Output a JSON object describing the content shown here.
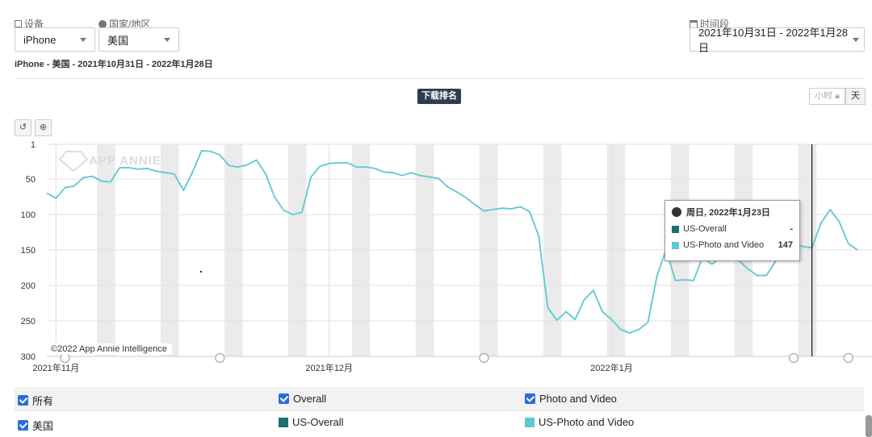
{
  "filters": {
    "device_label": "设备",
    "device_value": "iPhone",
    "country_label": "国家/地区",
    "country_value": "美国",
    "period_label": "时间段",
    "period_value": "2021年10月31日 - 2022年1月28日"
  },
  "subtitle": "iPhone - 美国 - 2021年10月31日 - 2022年1月28日",
  "chart_title": "下载排名",
  "granularity": {
    "hour": "小时",
    "day": "天"
  },
  "toolbar": {
    "reset": "↺",
    "zoom": "⊕"
  },
  "copyright": "©2022 App Annie Intelligence",
  "watermark": "APP ANNIE",
  "tooltip": {
    "date": "周日, 2022年1月23日",
    "rows": [
      {
        "name": "US-Overall",
        "value": "-"
      },
      {
        "name": "US-Photo and Video",
        "value": "147"
      }
    ]
  },
  "legend": {
    "all_label": "所有",
    "country_label": "美国",
    "overall_label": "Overall",
    "photo_label": "Photo and Video",
    "us_overall": "US-Overall",
    "us_photo": "US-Photo and Video"
  },
  "colors": {
    "overall": "#1f6e6e",
    "photo": "#5ec8d1",
    "badge": "#2c3e50"
  },
  "chart_data": {
    "type": "line",
    "y_reversed": true,
    "ylim": [
      300,
      1
    ],
    "yticks": [
      1,
      50,
      100,
      150,
      200,
      250,
      300
    ],
    "xticks": [
      {
        "date": "2021-11-01",
        "label": "2021年11月"
      },
      {
        "date": "2021-12-01",
        "label": "2021年12月"
      },
      {
        "date": "2022-01-01",
        "label": "2022年1月"
      }
    ],
    "x_start": "2021-10-31",
    "x_end": "2022-01-28",
    "series": [
      {
        "name": "US-Photo and Video",
        "color": "#5ec8d1",
        "x": [
          "2021-10-31",
          "2021-11-01",
          "2021-11-02",
          "2021-11-03",
          "2021-11-04",
          "2021-11-05",
          "2021-11-06",
          "2021-11-07",
          "2021-11-08",
          "2021-11-09",
          "2021-11-10",
          "2021-11-11",
          "2021-11-12",
          "2021-11-13",
          "2021-11-14",
          "2021-11-15",
          "2021-11-16",
          "2021-11-17",
          "2021-11-18",
          "2021-11-19",
          "2021-11-20",
          "2021-11-21",
          "2021-11-22",
          "2021-11-23",
          "2021-11-24",
          "2021-11-25",
          "2021-11-26",
          "2021-11-27",
          "2021-11-28",
          "2021-11-29",
          "2021-11-30",
          "2021-12-01",
          "2021-12-02",
          "2021-12-03",
          "2021-12-04",
          "2021-12-05",
          "2021-12-06",
          "2021-12-07",
          "2021-12-08",
          "2021-12-09",
          "2021-12-10",
          "2021-12-11",
          "2021-12-12",
          "2021-12-13",
          "2021-12-14",
          "2021-12-15",
          "2021-12-16",
          "2021-12-17",
          "2021-12-18",
          "2021-12-19",
          "2021-12-20",
          "2021-12-21",
          "2021-12-22",
          "2021-12-23",
          "2021-12-24",
          "2021-12-25",
          "2021-12-26",
          "2021-12-27",
          "2021-12-28",
          "2021-12-29",
          "2021-12-30",
          "2021-12-31",
          "2022-01-01",
          "2022-01-02",
          "2022-01-03",
          "2022-01-04",
          "2022-01-05",
          "2022-01-06",
          "2022-01-07",
          "2022-01-08",
          "2022-01-09",
          "2022-01-10",
          "2022-01-11",
          "2022-01-12",
          "2022-01-13",
          "2022-01-14",
          "2022-01-15",
          "2022-01-16",
          "2022-01-17",
          "2022-01-18",
          "2022-01-19",
          "2022-01-20",
          "2022-01-21",
          "2022-01-22",
          "2022-01-23",
          "2022-01-24",
          "2022-01-25",
          "2022-01-26",
          "2022-01-27",
          "2022-01-28"
        ],
        "values": [
          70,
          77,
          62,
          60,
          48,
          46,
          53,
          54,
          34,
          34,
          36,
          35,
          39,
          41,
          43,
          66,
          40,
          10,
          11,
          16,
          31,
          33,
          30,
          23,
          42,
          75,
          94,
          100,
          97,
          47,
          32,
          28,
          27,
          27,
          33,
          33,
          35,
          40,
          41,
          45,
          41,
          45,
          47,
          49,
          61,
          68,
          76,
          86,
          95,
          93,
          91,
          92,
          89,
          96,
          130,
          231,
          249,
          237,
          248,
          220,
          207,
          237,
          248,
          262,
          267,
          262,
          252,
          186,
          149,
          193,
          192,
          193,
          160,
          170,
          161,
          154,
          165,
          177,
          186,
          186,
          166,
          148,
          140,
          145,
          147,
          112,
          93,
          110,
          141,
          150
        ]
      }
    ],
    "tooltip_date": "2022-01-23"
  }
}
